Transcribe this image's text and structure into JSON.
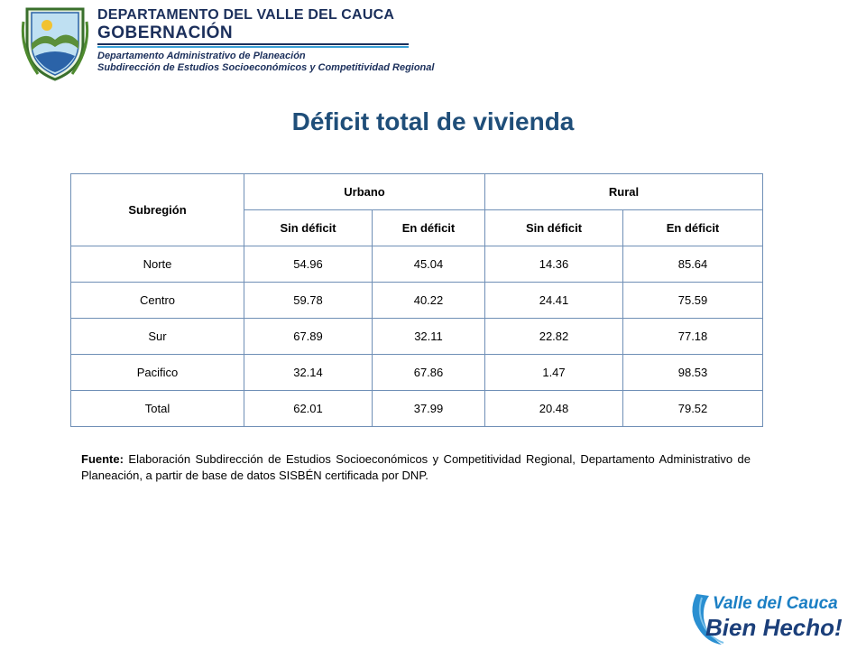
{
  "header": {
    "department": "DEPARTAMENTO DEL VALLE DEL CAUCA",
    "gobernacion": "GOBERNACIÓN",
    "office": "Departamento  Administrativo de Planeación",
    "suboffice": "Subdirección de Estudios Socioeconómicos y Competitividad Regional"
  },
  "title": "Déficit total de vivienda",
  "table": {
    "col_subregion": "Subregión",
    "group_urbano": "Urbano",
    "group_rural": "Rural",
    "sub_sin": "Sin déficit",
    "sub_en": "En déficit",
    "rows": [
      {
        "name": "Norte",
        "u_sin": "54.96",
        "u_en": "45.04",
        "r_sin": "14.36",
        "r_en": "85.64"
      },
      {
        "name": "Centro",
        "u_sin": "59.78",
        "u_en": "40.22",
        "r_sin": "24.41",
        "r_en": "75.59"
      },
      {
        "name": "Sur",
        "u_sin": "67.89",
        "u_en": "32.11",
        "r_sin": "22.82",
        "r_en": "77.18"
      },
      {
        "name": "Pacifico",
        "u_sin": "32.14",
        "u_en": "67.86",
        "r_sin": "1.47",
        "r_en": "98.53"
      },
      {
        "name": "Total",
        "u_sin": "62.01",
        "u_en": "37.99",
        "r_sin": "20.48",
        "r_en": "79.52"
      }
    ]
  },
  "source": {
    "label": "Fuente:",
    "text": " Elaboración Subdirección de Estudios Socioeconómicos y Competitividad Regional, Departamento Administrativo de Planeación, a partir de base de datos SISBÉN certificada por DNP."
  },
  "footer_logo": {
    "line1": "Valle del Cauca",
    "line2": "Bien Hecho!"
  }
}
